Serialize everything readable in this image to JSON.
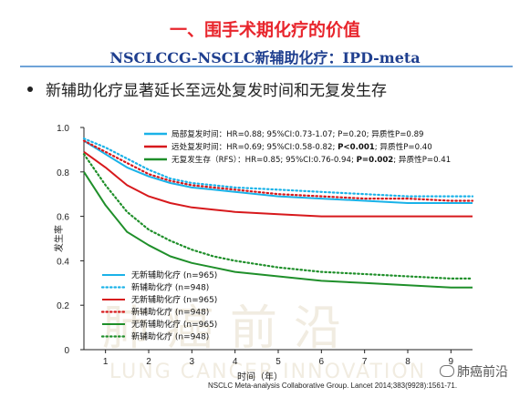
{
  "page": {
    "title": "一、围手术期化疗的价值",
    "subtitle": "NSCLCCG-NSCLC新辅助化疗：IPD-meta",
    "bullet": "新辅助化疗显著延长至远处复发时间和无复发生存",
    "watermark": {
      "cn": "肺癌前沿",
      "en": "LUNG CANCER INNOVATION"
    },
    "footer_logo": "肺癌前沿",
    "citation": "NSCLC Meta-analysis Collaborative Group. Lancet 2014;383(9928):1561-71."
  },
  "chart_data": {
    "type": "line",
    "xlabel": "时间（年）",
    "ylabel": "发生率",
    "xlim": [
      0.5,
      9.5
    ],
    "ylim": [
      0,
      1.0
    ],
    "xticks": [
      1,
      2,
      3,
      4,
      5,
      6,
      7,
      8,
      9
    ],
    "yticks": [
      0,
      0.2,
      0.4,
      0.6,
      0.8,
      1.0
    ],
    "ytick_labels": [
      "0",
      "0.2",
      "0.4",
      "0.6",
      "0.8",
      "1.0"
    ],
    "x": [
      0.5,
      1,
      1.5,
      2,
      2.5,
      3,
      3.5,
      4,
      5,
      6,
      7,
      8,
      9,
      9.5
    ],
    "series": [
      {
        "name": "无新辅助化疗 (n=965)",
        "color": "#1ab2e8",
        "style": "solid",
        "values": [
          0.94,
          0.88,
          0.82,
          0.78,
          0.75,
          0.73,
          0.72,
          0.71,
          0.69,
          0.68,
          0.67,
          0.66,
          0.66,
          0.66
        ]
      },
      {
        "name": "新辅助化疗 (n=948)",
        "color": "#1ab2e8",
        "style": "dotted",
        "values": [
          0.95,
          0.91,
          0.86,
          0.81,
          0.77,
          0.75,
          0.74,
          0.73,
          0.72,
          0.71,
          0.7,
          0.69,
          0.69,
          0.69
        ]
      },
      {
        "name": "无新辅助化疗 (n=965)",
        "color": "#d7191c",
        "style": "solid",
        "values": [
          0.89,
          0.82,
          0.74,
          0.69,
          0.66,
          0.64,
          0.63,
          0.62,
          0.61,
          0.6,
          0.6,
          0.6,
          0.6,
          0.6
        ]
      },
      {
        "name": "新辅助化疗 (n=948)",
        "color": "#d7191c",
        "style": "dotted",
        "values": [
          0.94,
          0.89,
          0.84,
          0.79,
          0.76,
          0.74,
          0.73,
          0.72,
          0.7,
          0.69,
          0.68,
          0.68,
          0.67,
          0.67
        ]
      },
      {
        "name": "无新辅助化疗 (n=965)",
        "color": "#1f8f2a",
        "style": "solid",
        "values": [
          0.8,
          0.65,
          0.53,
          0.47,
          0.42,
          0.39,
          0.37,
          0.35,
          0.33,
          0.31,
          0.3,
          0.29,
          0.28,
          0.28
        ]
      },
      {
        "name": "新辅助化疗 (n=948)",
        "color": "#1f8f2a",
        "style": "dotted",
        "values": [
          0.88,
          0.74,
          0.62,
          0.54,
          0.49,
          0.45,
          0.42,
          0.4,
          0.37,
          0.35,
          0.34,
          0.33,
          0.32,
          0.32
        ]
      }
    ],
    "stats_legend": [
      {
        "color": "#1ab2e8",
        "prefix": "局部复发时间：HR=0.88;  95%CI:0.73-1.07;  P=0.20;  异质性P=0.89",
        "bold": "",
        "suffix": ""
      },
      {
        "color": "#d7191c",
        "prefix": "远处复发时间：HR=0.69;  95%CI:0.58-0.82;  ",
        "bold": "P<0.001",
        "suffix": "; 异质性P=0.40"
      },
      {
        "color": "#1f8f2a",
        "prefix": "无复发生存（RFS）：HR=0.85;  95%CI:0.76-0.94;  ",
        "bold": "P=0.002",
        "suffix": "; 异质性P=0.41"
      }
    ],
    "legend_position": "bottom-left",
    "grid": false
  }
}
